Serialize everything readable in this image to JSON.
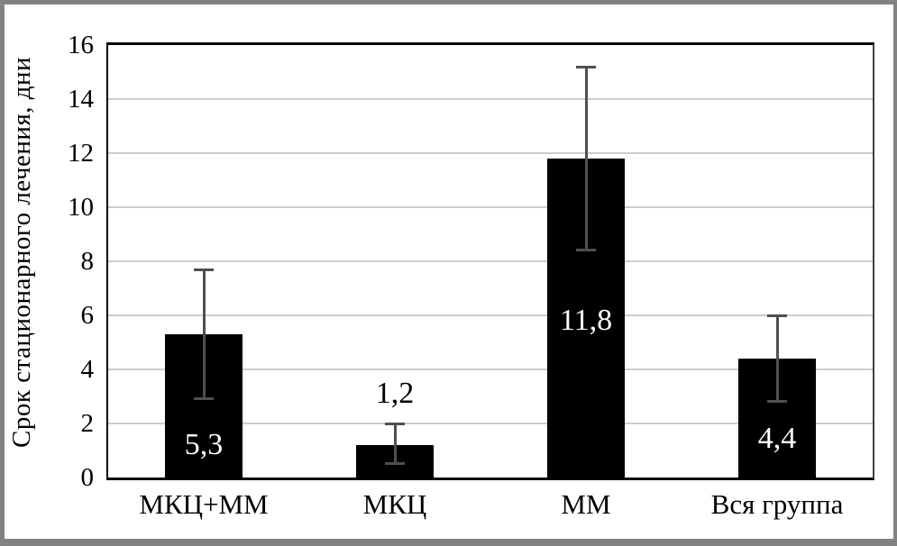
{
  "chart_data": {
    "type": "bar",
    "title": "",
    "xlabel": "",
    "ylabel": "Срок стационарного лечения, дни",
    "categories": [
      "МКЦ+ММ",
      "МКЦ",
      "ММ",
      "Вся группа"
    ],
    "values": [
      5.3,
      1.2,
      11.8,
      4.4
    ],
    "value_labels": [
      "5,3",
      "1,2",
      "11,8",
      "4,4"
    ],
    "error_high": [
      7.7,
      2.0,
      15.2,
      6.0
    ],
    "error_low": [
      2.9,
      0.5,
      8.4,
      2.8
    ],
    "ylim": [
      0,
      16
    ],
    "yticks": [
      0,
      2,
      4,
      6,
      8,
      10,
      12,
      14,
      16
    ],
    "grid": "horizontal",
    "legend": "none",
    "bar_color": "#000000",
    "error_bar_color": "#4f4f4f",
    "gridline_color": "#cccccc",
    "value_label_colors": [
      "#ffffff",
      "#000000",
      "#ffffff",
      "#ffffff"
    ],
    "value_label_y": [
      1.2,
      3.1,
      5.8,
      1.45
    ]
  }
}
